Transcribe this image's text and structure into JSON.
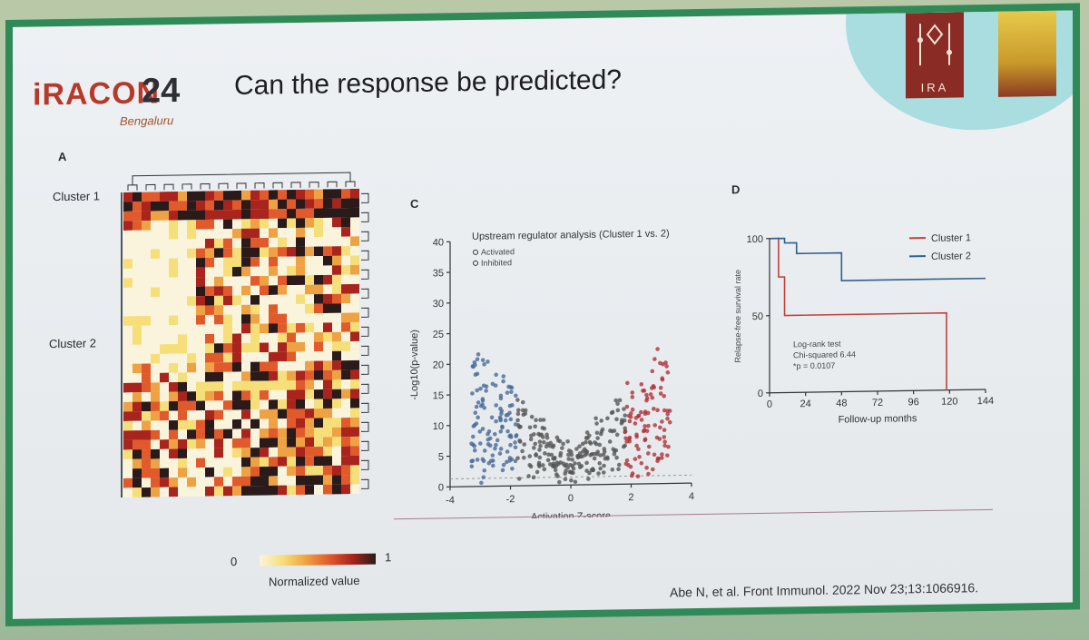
{
  "header": {
    "logo_brand": "iRACON",
    "logo_year": "24",
    "logo_city": "Bengaluru",
    "title": "Can the response be predicted?"
  },
  "org": {
    "ira_text": "IRA"
  },
  "panel_a": {
    "label": "A",
    "cluster_labels": [
      "Cluster 1",
      "Cluster 2"
    ],
    "legend_min": "0",
    "legend_max": "1",
    "legend_label": "Normalized value",
    "colors": [
      "#fbf4dc",
      "#f6df78",
      "#efa243",
      "#e05a2c",
      "#a8241c",
      "#2a1a1a"
    ]
  },
  "panel_c": {
    "label": "C",
    "title": "Upstream regulator analysis (Cluster 1 vs. 2)",
    "legend": [
      "Activated",
      "Inhibited"
    ],
    "xlabel": "Activation Z-score",
    "ylabel": "-Log10(p-value)",
    "xticks": [
      "-4",
      "-2",
      "0",
      "2",
      "4"
    ],
    "yticks": [
      "0",
      "5",
      "10",
      "15",
      "20",
      "25",
      "30",
      "35",
      "40"
    ],
    "xlim": [
      -4,
      4
    ],
    "ylim": [
      0,
      40
    ],
    "activated_color": "#b2323a",
    "inhibited_color": "#4a6a99"
  },
  "panel_d": {
    "label": "D",
    "xlabel": "Follow-up months",
    "ylabel": "Relapse-free survival rate",
    "xticks": [
      "0",
      "24",
      "48",
      "72",
      "96",
      "120",
      "144"
    ],
    "yticks": [
      "0",
      "50",
      "100"
    ],
    "legend": [
      "Cluster 1",
      "Cluster 2"
    ],
    "stats": [
      "Log-rank test",
      "Chi-squared 6.44",
      "*p = 0.0107"
    ],
    "series": [
      {
        "name": "Cluster 1",
        "color": "#c0403a",
        "steps": [
          [
            0,
            100
          ],
          [
            6,
            75
          ],
          [
            10,
            50
          ],
          [
            118,
            50
          ],
          [
            118,
            0
          ]
        ]
      },
      {
        "name": "Cluster 2",
        "color": "#2f5f8f",
        "steps": [
          [
            0,
            100
          ],
          [
            10,
            97
          ],
          [
            18,
            90
          ],
          [
            48,
            90
          ],
          [
            48,
            72
          ],
          [
            144,
            72
          ]
        ]
      }
    ]
  },
  "citation": "Abe N, et al. Front Immunol. 2022 Nov 23;13:1066916."
}
